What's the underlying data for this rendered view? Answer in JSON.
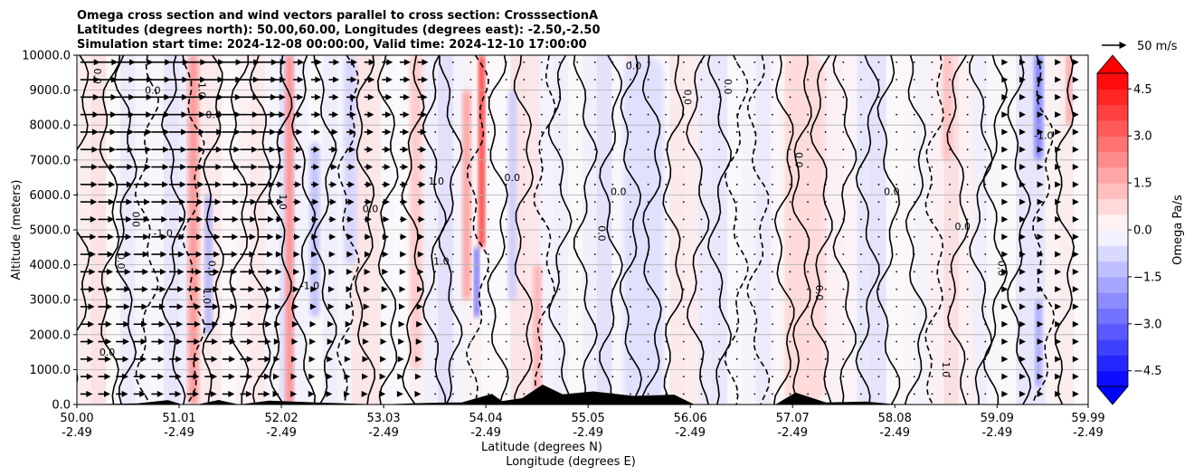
{
  "chart_data": {
    "type": "contour",
    "title_lines": [
      "Omega cross section and wind vectors parallel to cross section: CrosssectionA",
      "Latitudes (degrees north): 50.00,60.00, Longitudes (degrees east): -2.50,-2.50",
      "Simulation start time: 2024-12-08 00:00:00, Valid time: 2024-12-10 17:00:00"
    ],
    "ylabel": "Altitude (meters)",
    "xlabel_1": "Latitude (degrees N)",
    "xlabel_2": "Longitude (degrees E)",
    "ylim": [
      0,
      10000
    ],
    "xlim": [
      50.0,
      59.99
    ],
    "y_ticks": [
      {
        "value": 0,
        "label": "0.0"
      },
      {
        "value": 1000,
        "label": "1000.0"
      },
      {
        "value": 2000,
        "label": "2000.0"
      },
      {
        "value": 3000,
        "label": "3000.0"
      },
      {
        "value": 4000,
        "label": "4000.0"
      },
      {
        "value": 5000,
        "label": "5000.0"
      },
      {
        "value": 6000,
        "label": "6000.0"
      },
      {
        "value": 7000,
        "label": "7000.0"
      },
      {
        "value": 8000,
        "label": "8000.0"
      },
      {
        "value": 9000,
        "label": "9000.0"
      },
      {
        "value": 10000,
        "label": "10000.0"
      }
    ],
    "x_ticks": [
      {
        "value": 50.0,
        "lat": "50.00",
        "lon": "-2.49"
      },
      {
        "value": 51.01,
        "lat": "51.01",
        "lon": "-2.49"
      },
      {
        "value": 52.02,
        "lat": "52.02",
        "lon": "-2.49"
      },
      {
        "value": 53.03,
        "lat": "53.03",
        "lon": "-2.49"
      },
      {
        "value": 54.04,
        "lat": "54.04",
        "lon": "-2.49"
      },
      {
        "value": 55.05,
        "lat": "55.05",
        "lon": "-2.49"
      },
      {
        "value": 56.06,
        "lat": "56.06",
        "lon": "-2.49"
      },
      {
        "value": 57.07,
        "lat": "57.07",
        "lon": "-2.49"
      },
      {
        "value": 58.08,
        "lat": "58.08",
        "lon": "-2.49"
      },
      {
        "value": 59.09,
        "lat": "59.09",
        "lon": "-2.49"
      },
      {
        "value": 59.99,
        "lat": "59.99",
        "lon": "-2.49"
      }
    ],
    "colorbar": {
      "label": "Omega Pa/s",
      "range": [
        -5,
        5
      ],
      "ticks": [
        {
          "value": 4.5,
          "label": "4.5"
        },
        {
          "value": 3.0,
          "label": "3.0"
        },
        {
          "value": 1.5,
          "label": "1.5"
        },
        {
          "value": 0.0,
          "label": "0.0"
        },
        {
          "value": -1.5,
          "label": "−1.5"
        },
        {
          "value": -3.0,
          "label": "−3.0"
        },
        {
          "value": -4.5,
          "label": "−4.5"
        }
      ]
    },
    "quiver_key": {
      "label": "50 m/s",
      "speed": 50
    },
    "contour_levels": [
      -1.0,
      0.0,
      1.0
    ],
    "omega_features": [
      {
        "lat": 51.15,
        "omega": 2.0,
        "ymin": 0,
        "ymax": 10000,
        "width": 0.1
      },
      {
        "lat": 51.3,
        "omega": -1.5,
        "ymin": 2000,
        "ymax": 6000,
        "width": 0.07
      },
      {
        "lat": 52.1,
        "omega": 2.2,
        "ymin": 0,
        "ymax": 10000,
        "width": 0.08
      },
      {
        "lat": 52.35,
        "omega": -1.2,
        "ymin": 2500,
        "ymax": 7500,
        "width": 0.1
      },
      {
        "lat": 52.7,
        "omega": -0.8,
        "ymin": 4000,
        "ymax": 10000,
        "width": 0.12
      },
      {
        "lat": 53.35,
        "omega": 1.0,
        "ymin": 1000,
        "ymax": 10000,
        "width": 0.12
      },
      {
        "lat": 54.0,
        "omega": 4.0,
        "ymin": 4500,
        "ymax": 10000,
        "width": 0.06
      },
      {
        "lat": 53.95,
        "omega": -3.0,
        "ymin": 2500,
        "ymax": 4500,
        "width": 0.05
      },
      {
        "lat": 53.85,
        "omega": 1.8,
        "ymin": 3000,
        "ymax": 9000,
        "width": 0.08
      },
      {
        "lat": 54.3,
        "omega": -1.0,
        "ymin": 3000,
        "ymax": 9000,
        "width": 0.08
      },
      {
        "lat": 54.55,
        "omega": 1.5,
        "ymin": 0,
        "ymax": 4000,
        "width": 0.08
      },
      {
        "lat": 55.6,
        "omega": -0.6,
        "ymin": 0,
        "ymax": 10000,
        "width": 0.4
      },
      {
        "lat": 57.2,
        "omega": 0.7,
        "ymin": 0,
        "ymax": 10000,
        "width": 0.4
      },
      {
        "lat": 58.6,
        "omega": 1.2,
        "ymin": 7000,
        "ymax": 10000,
        "width": 0.1
      },
      {
        "lat": 59.5,
        "omega": -2.5,
        "ymin": 7000,
        "ymax": 10000,
        "width": 0.08
      },
      {
        "lat": 59.5,
        "omega": -1.8,
        "ymin": 500,
        "ymax": 3000,
        "width": 0.06
      },
      {
        "lat": 59.8,
        "omega": 2.0,
        "ymin": 8000,
        "ymax": 10000,
        "width": 0.05
      }
    ],
    "contour_labels": [
      {
        "lat": 50.17,
        "alt": 9400,
        "text": "0.0"
      },
      {
        "lat": 50.4,
        "alt": 4100,
        "text": "0.0"
      },
      {
        "lat": 50.3,
        "alt": 1400,
        "text": "0.0"
      },
      {
        "lat": 50.55,
        "alt": 5300,
        "text": "0.0"
      },
      {
        "lat": 50.85,
        "alt": 4800,
        "text": "-1.0"
      },
      {
        "lat": 50.75,
        "alt": 8900,
        "text": "0.0"
      },
      {
        "lat": 51.2,
        "alt": 9000,
        "text": "1.0"
      },
      {
        "lat": 51.35,
        "alt": 8200,
        "text": "0.0"
      },
      {
        "lat": 51.3,
        "alt": 3900,
        "text": "0.0"
      },
      {
        "lat": 51.25,
        "alt": 3100,
        "text": "1.0"
      },
      {
        "lat": 52.0,
        "alt": 5800,
        "text": "1.0"
      },
      {
        "lat": 52.3,
        "alt": 3300,
        "text": "-1.0"
      },
      {
        "lat": 52.9,
        "alt": 5500,
        "text": "0.0"
      },
      {
        "lat": 53.55,
        "alt": 6300,
        "text": "1.0"
      },
      {
        "lat": 53.6,
        "alt": 4000,
        "text": "1.0"
      },
      {
        "lat": 54.3,
        "alt": 6400,
        "text": "0.0"
      },
      {
        "lat": 55.15,
        "alt": 4900,
        "text": "0.0"
      },
      {
        "lat": 55.35,
        "alt": 6000,
        "text": "0.0"
      },
      {
        "lat": 55.5,
        "alt": 9600,
        "text": "0.0"
      },
      {
        "lat": 56.0,
        "alt": 8800,
        "text": "0.0"
      },
      {
        "lat": 56.4,
        "alt": 9100,
        "text": "0.0"
      },
      {
        "lat": 57.1,
        "alt": 7000,
        "text": "0.0"
      },
      {
        "lat": 57.3,
        "alt": 3200,
        "text": "0.0"
      },
      {
        "lat": 58.05,
        "alt": 6000,
        "text": "0.0"
      },
      {
        "lat": 58.55,
        "alt": 1000,
        "text": "1.0"
      },
      {
        "lat": 59.55,
        "alt": 7600,
        "text": "-1.0"
      },
      {
        "lat": 59.1,
        "alt": 3900,
        "text": "0.0"
      },
      {
        "lat": 58.75,
        "alt": 5000,
        "text": "0.0"
      }
    ],
    "terrain": [
      {
        "lat": 50.0,
        "alt": 0
      },
      {
        "lat": 50.6,
        "alt": 20
      },
      {
        "lat": 50.9,
        "alt": 80
      },
      {
        "lat": 51.1,
        "alt": 10
      },
      {
        "lat": 51.4,
        "alt": 60
      },
      {
        "lat": 51.6,
        "alt": 0
      },
      {
        "lat": 51.9,
        "alt": 90
      },
      {
        "lat": 52.4,
        "alt": 30
      },
      {
        "lat": 53.0,
        "alt": 0
      },
      {
        "lat": 53.3,
        "alt": 60
      },
      {
        "lat": 53.6,
        "alt": 120
      },
      {
        "lat": 53.8,
        "alt": 60
      },
      {
        "lat": 54.1,
        "alt": 250
      },
      {
        "lat": 54.2,
        "alt": 80
      },
      {
        "lat": 54.4,
        "alt": 150
      },
      {
        "lat": 54.6,
        "alt": 550
      },
      {
        "lat": 54.8,
        "alt": 280
      },
      {
        "lat": 55.1,
        "alt": 350
      },
      {
        "lat": 55.5,
        "alt": 250
      },
      {
        "lat": 55.9,
        "alt": 300
      },
      {
        "lat": 56.1,
        "alt": 0
      },
      {
        "lat": 56.9,
        "alt": 0
      },
      {
        "lat": 57.1,
        "alt": 300
      },
      {
        "lat": 57.4,
        "alt": 120
      },
      {
        "lat": 57.8,
        "alt": 80
      },
      {
        "lat": 58.1,
        "alt": 0
      },
      {
        "lat": 59.99,
        "alt": 0
      }
    ],
    "wind": {
      "strong_lat_range": [
        50.0,
        51.8
      ],
      "strong_speed": 40,
      "moderate_lat_range": [
        51.8,
        53.5
      ],
      "moderate_speed": 22,
      "weak_speed": 4,
      "east_bias_lat_range": [
        59.0,
        59.99
      ]
    }
  }
}
